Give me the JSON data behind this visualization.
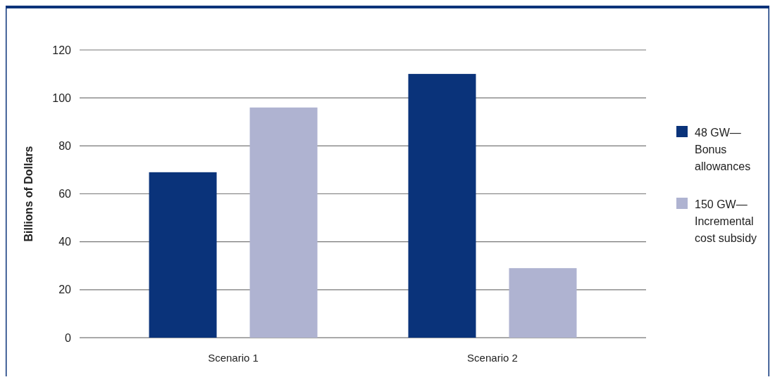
{
  "chart_data": {
    "type": "bar",
    "ylabel": "Billions of Dollars",
    "categories": [
      "Scenario 1",
      "Scenario 2"
    ],
    "series": [
      {
        "name": "48 GW—Bonus allowances",
        "color": "#0a337a",
        "values": [
          69,
          110
        ]
      },
      {
        "name": "150 GW—Incremental cost subsidy",
        "color": "#afb3d1",
        "values": [
          96,
          29
        ]
      }
    ],
    "ylim": [
      0,
      120
    ],
    "yticks": [
      0,
      20,
      40,
      60,
      80,
      100,
      120
    ],
    "grid": "y",
    "legend": "right"
  }
}
